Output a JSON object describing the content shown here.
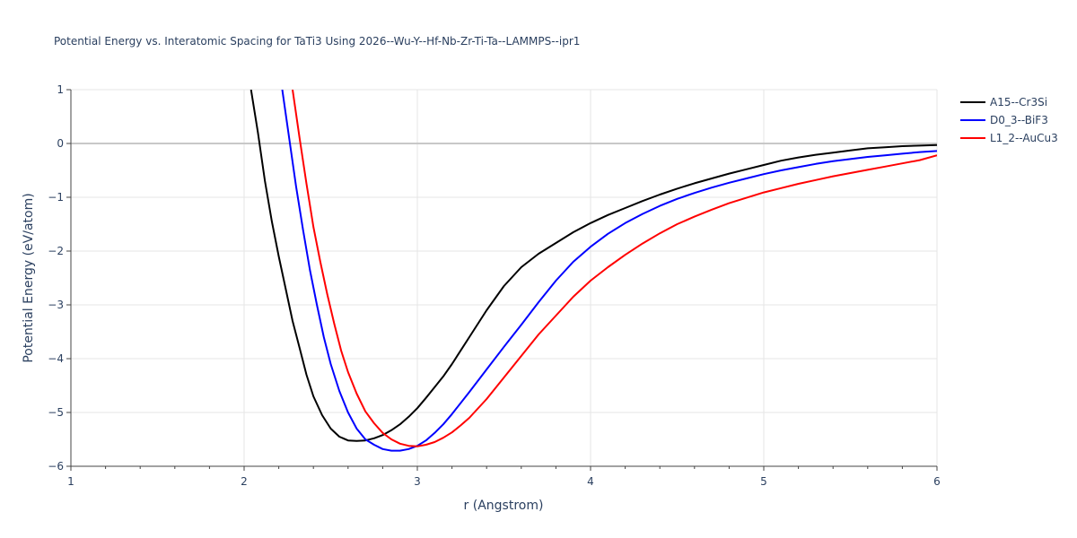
{
  "chart_data": {
    "type": "line",
    "title": "Potential Energy vs. Interatomic Spacing for TaTi3 Using 2026--Wu-Y--Hf-Nb-Zr-Ti-Ta--LAMMPS--ipr1",
    "xlabel": "r (Angstrom)",
    "ylabel": "Potential Energy (eV/atom)",
    "xlim": [
      1,
      6
    ],
    "ylim": [
      -6,
      1
    ],
    "xticks": [
      1,
      2,
      3,
      4,
      5,
      6
    ],
    "xtick_labels": [
      "1",
      "2",
      "3",
      "4",
      "5",
      "6"
    ],
    "yticks": [
      1,
      0,
      -1,
      -2,
      -3,
      -4,
      -5,
      -6
    ],
    "ytick_labels": [
      "1",
      "0",
      "−1",
      "−2",
      "−3",
      "−4",
      "−5",
      "−6"
    ],
    "grid": true,
    "legend_position": "top-right",
    "series": [
      {
        "name": "A15--Cr3Si",
        "color": "#000000",
        "x": [
          2.04,
          2.08,
          2.12,
          2.16,
          2.2,
          2.24,
          2.28,
          2.32,
          2.36,
          2.4,
          2.45,
          2.5,
          2.55,
          2.6,
          2.65,
          2.7,
          2.75,
          2.8,
          2.85,
          2.9,
          2.95,
          3.0,
          3.05,
          3.1,
          3.15,
          3.2,
          3.3,
          3.4,
          3.5,
          3.6,
          3.7,
          3.8,
          3.9,
          4.0,
          4.1,
          4.2,
          4.3,
          4.4,
          4.5,
          4.6,
          4.7,
          4.8,
          4.9,
          5.0,
          5.1,
          5.2,
          5.3,
          5.4,
          5.5,
          5.6,
          5.7,
          5.8,
          5.9,
          6.0
        ],
        "y": [
          1.0,
          0.2,
          -0.7,
          -1.45,
          -2.1,
          -2.7,
          -3.3,
          -3.8,
          -4.3,
          -4.7,
          -5.05,
          -5.3,
          -5.45,
          -5.52,
          -5.53,
          -5.52,
          -5.48,
          -5.42,
          -5.33,
          -5.22,
          -5.08,
          -4.92,
          -4.73,
          -4.53,
          -4.33,
          -4.1,
          -3.6,
          -3.1,
          -2.65,
          -2.3,
          -2.05,
          -1.85,
          -1.65,
          -1.48,
          -1.33,
          -1.2,
          -1.07,
          -0.95,
          -0.84,
          -0.74,
          -0.65,
          -0.56,
          -0.48,
          -0.4,
          -0.32,
          -0.26,
          -0.21,
          -0.17,
          -0.13,
          -0.09,
          -0.07,
          -0.05,
          -0.04,
          -0.03
        ]
      },
      {
        "name": "D0_3--BiF3",
        "color": "#0000ff",
        "x": [
          2.22,
          2.26,
          2.3,
          2.34,
          2.38,
          2.42,
          2.46,
          2.5,
          2.55,
          2.6,
          2.65,
          2.7,
          2.75,
          2.8,
          2.85,
          2.9,
          2.95,
          3.0,
          3.05,
          3.1,
          3.15,
          3.2,
          3.3,
          3.4,
          3.5,
          3.6,
          3.7,
          3.8,
          3.9,
          4.0,
          4.1,
          4.2,
          4.3,
          4.4,
          4.5,
          4.6,
          4.7,
          4.8,
          4.9,
          5.0,
          5.1,
          5.2,
          5.3,
          5.4,
          5.5,
          5.6,
          5.7,
          5.8,
          5.9,
          6.0
        ],
        "y": [
          1.0,
          0.1,
          -0.8,
          -1.6,
          -2.35,
          -3.0,
          -3.6,
          -4.1,
          -4.6,
          -5.0,
          -5.3,
          -5.5,
          -5.6,
          -5.68,
          -5.71,
          -5.71,
          -5.68,
          -5.62,
          -5.52,
          -5.38,
          -5.22,
          -5.03,
          -4.62,
          -4.2,
          -3.78,
          -3.37,
          -2.95,
          -2.55,
          -2.2,
          -1.92,
          -1.68,
          -1.48,
          -1.31,
          -1.16,
          -1.03,
          -0.92,
          -0.82,
          -0.73,
          -0.65,
          -0.57,
          -0.5,
          -0.44,
          -0.38,
          -0.33,
          -0.29,
          -0.25,
          -0.22,
          -0.19,
          -0.16,
          -0.14
        ]
      },
      {
        "name": "L1_2--AuCu3",
        "color": "#ff0000",
        "x": [
          2.28,
          2.32,
          2.36,
          2.4,
          2.44,
          2.48,
          2.52,
          2.56,
          2.6,
          2.65,
          2.7,
          2.75,
          2.8,
          2.85,
          2.9,
          2.95,
          3.0,
          3.05,
          3.1,
          3.15,
          3.2,
          3.25,
          3.3,
          3.4,
          3.5,
          3.6,
          3.7,
          3.8,
          3.9,
          4.0,
          4.1,
          4.2,
          4.3,
          4.4,
          4.5,
          4.6,
          4.7,
          4.8,
          4.9,
          5.0,
          5.1,
          5.2,
          5.3,
          5.4,
          5.5,
          5.6,
          5.7,
          5.8,
          5.9,
          6.0
        ],
        "y": [
          1.0,
          0.1,
          -0.75,
          -1.55,
          -2.2,
          -2.8,
          -3.35,
          -3.85,
          -4.25,
          -4.65,
          -4.98,
          -5.2,
          -5.38,
          -5.5,
          -5.58,
          -5.62,
          -5.63,
          -5.6,
          -5.55,
          -5.47,
          -5.37,
          -5.24,
          -5.1,
          -4.75,
          -4.35,
          -3.95,
          -3.55,
          -3.2,
          -2.85,
          -2.55,
          -2.3,
          -2.07,
          -1.86,
          -1.67,
          -1.5,
          -1.36,
          -1.23,
          -1.11,
          -1.01,
          -0.91,
          -0.83,
          -0.75,
          -0.68,
          -0.61,
          -0.55,
          -0.49,
          -0.43,
          -0.37,
          -0.31,
          -0.22
        ]
      }
    ]
  }
}
